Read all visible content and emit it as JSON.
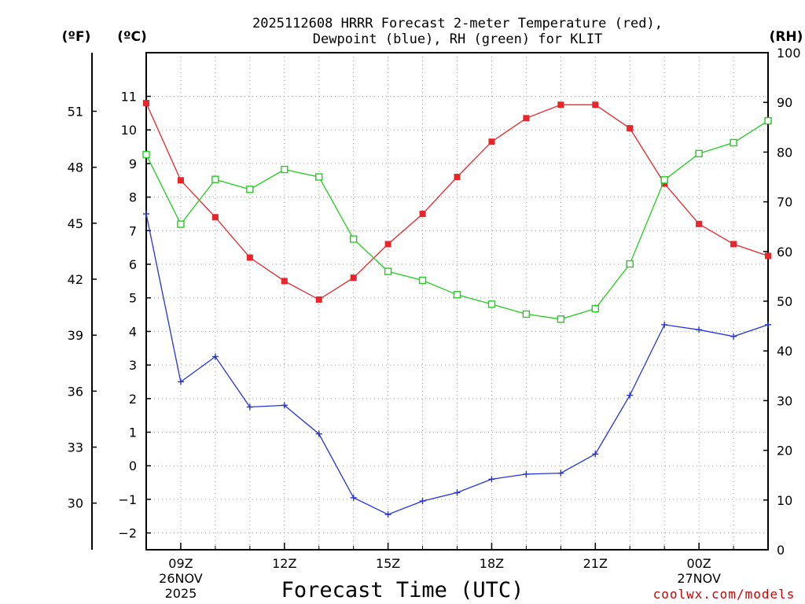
{
  "chart_data": {
    "type": "line",
    "title_line1": "2025112608 HRRR Forecast 2-meter Temperature (red),",
    "title_line2": "Dewpoint (blue), RH (green) for KLIT",
    "xlabel": "Forecast Time (UTC)",
    "credit": "coolwx.com/models",
    "left_unit_f": "(ºF)",
    "left_unit_c": "(ºC)",
    "right_unit": "(RH)",
    "x_hours": [
      8,
      9,
      10,
      11,
      12,
      13,
      14,
      15,
      16,
      17,
      18,
      19,
      20,
      21,
      22,
      23,
      24,
      25,
      26
    ],
    "xlim": [
      8,
      26
    ],
    "celsius_ylim": [
      -2.5,
      12.3
    ],
    "rh_ylim": [
      0,
      100
    ],
    "x_ticks": [
      {
        "hour": 9,
        "line1": "09Z",
        "line2": "26NOV",
        "line3": "2025"
      },
      {
        "hour": 12,
        "line1": "12Z",
        "line2": "",
        "line3": ""
      },
      {
        "hour": 15,
        "line1": "15Z",
        "line2": "",
        "line3": ""
      },
      {
        "hour": 18,
        "line1": "18Z",
        "line2": "",
        "line3": ""
      },
      {
        "hour": 21,
        "line1": "21Z",
        "line2": "",
        "line3": ""
      },
      {
        "hour": 24,
        "line1": "00Z",
        "line2": "27NOV",
        "line3": ""
      }
    ],
    "celsius_ticks": [
      11,
      10,
      9,
      8,
      7,
      6,
      5,
      4,
      3,
      2,
      1,
      0,
      -1,
      -2
    ],
    "celsius_tick_labels": [
      "11",
      "10",
      "9",
      "8",
      "7",
      "6",
      "5",
      "4",
      "3",
      "2",
      "1",
      "0",
      "−1",
      "−2"
    ],
    "fahrenheit_ticks": [
      51,
      48,
      45,
      42,
      39,
      36,
      33,
      30
    ],
    "fahrenheit_tick_labels": [
      "51",
      "48",
      "45",
      "42",
      "39",
      "36",
      "33",
      "30"
    ],
    "rh_ticks": [
      100,
      90,
      80,
      70,
      60,
      50,
      40,
      30,
      20,
      10,
      0
    ],
    "rh_tick_labels": [
      "100",
      "90",
      "80",
      "70",
      "60",
      "50",
      "40",
      "30",
      "20",
      "10",
      "0"
    ],
    "series": [
      {
        "name": "Temperature",
        "axis": "celsius",
        "color": "#e8262a",
        "marker": "filled-square",
        "values": [
          10.8,
          8.5,
          7.4,
          6.2,
          5.5,
          4.95,
          5.6,
          6.6,
          7.5,
          8.6,
          9.65,
          10.35,
          10.75,
          10.75,
          10.05,
          8.4,
          7.2,
          6.6,
          6.25
        ]
      },
      {
        "name": "Dewpoint",
        "axis": "celsius",
        "color": "#2233dd",
        "marker": "plus",
        "values": [
          7.5,
          2.5,
          3.25,
          1.75,
          1.8,
          0.95,
          -0.95,
          -1.45,
          -1.05,
          -0.8,
          -0.4,
          -0.25,
          -0.22,
          0.35,
          2.1,
          4.2,
          4.05,
          3.85,
          4.2
        ]
      },
      {
        "name": "RH",
        "axis": "rh",
        "color": "#22cc22",
        "marker": "open-square",
        "values": [
          79.5,
          65.5,
          74.5,
          72.5,
          76.5,
          75,
          62.5,
          56,
          54.2,
          51.3,
          49.4,
          47.4,
          46.4,
          48.5,
          57.5,
          74.4,
          79.7,
          81.9,
          86.3
        ]
      }
    ]
  }
}
